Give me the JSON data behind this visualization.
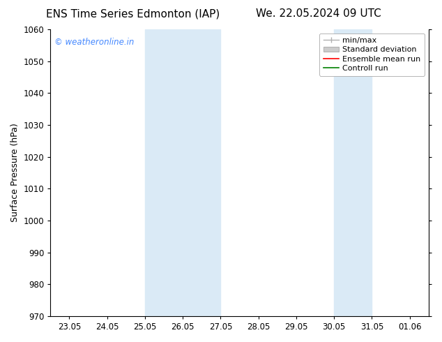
{
  "title_left": "ENS Time Series Edmonton (IAP)",
  "title_right": "We. 22.05.2024 09 UTC",
  "ylabel": "Surface Pressure (hPa)",
  "ylim": [
    970,
    1060
  ],
  "yticks": [
    970,
    980,
    990,
    1000,
    1010,
    1020,
    1030,
    1040,
    1050,
    1060
  ],
  "xtick_labels": [
    "23.05",
    "24.05",
    "25.05",
    "26.05",
    "27.05",
    "28.05",
    "29.05",
    "30.05",
    "31.05",
    "01.06"
  ],
  "xtick_positions": [
    0,
    1,
    2,
    3,
    4,
    5,
    6,
    7,
    8,
    9
  ],
  "xlim": [
    -0.5,
    9.5
  ],
  "shaded_regions": [
    {
      "x_start": 2.0,
      "x_end": 4.0,
      "color": "#daeaf6"
    },
    {
      "x_start": 7.0,
      "x_end": 8.0,
      "color": "#daeaf6"
    }
  ],
  "watermark_text": "© weatheronline.in",
  "watermark_color": "#4488ff",
  "legend_items": [
    {
      "label": "min/max",
      "type": "minmax",
      "color": "#b0b0b0"
    },
    {
      "label": "Standard deviation",
      "type": "patch",
      "color": "#cccccc"
    },
    {
      "label": "Ensemble mean run",
      "type": "line",
      "color": "#ff0000"
    },
    {
      "label": "Controll run",
      "type": "line",
      "color": "#008000"
    }
  ],
  "background_color": "#ffffff",
  "title_fontsize": 11,
  "axis_label_fontsize": 9,
  "tick_fontsize": 8.5,
  "legend_fontsize": 8
}
